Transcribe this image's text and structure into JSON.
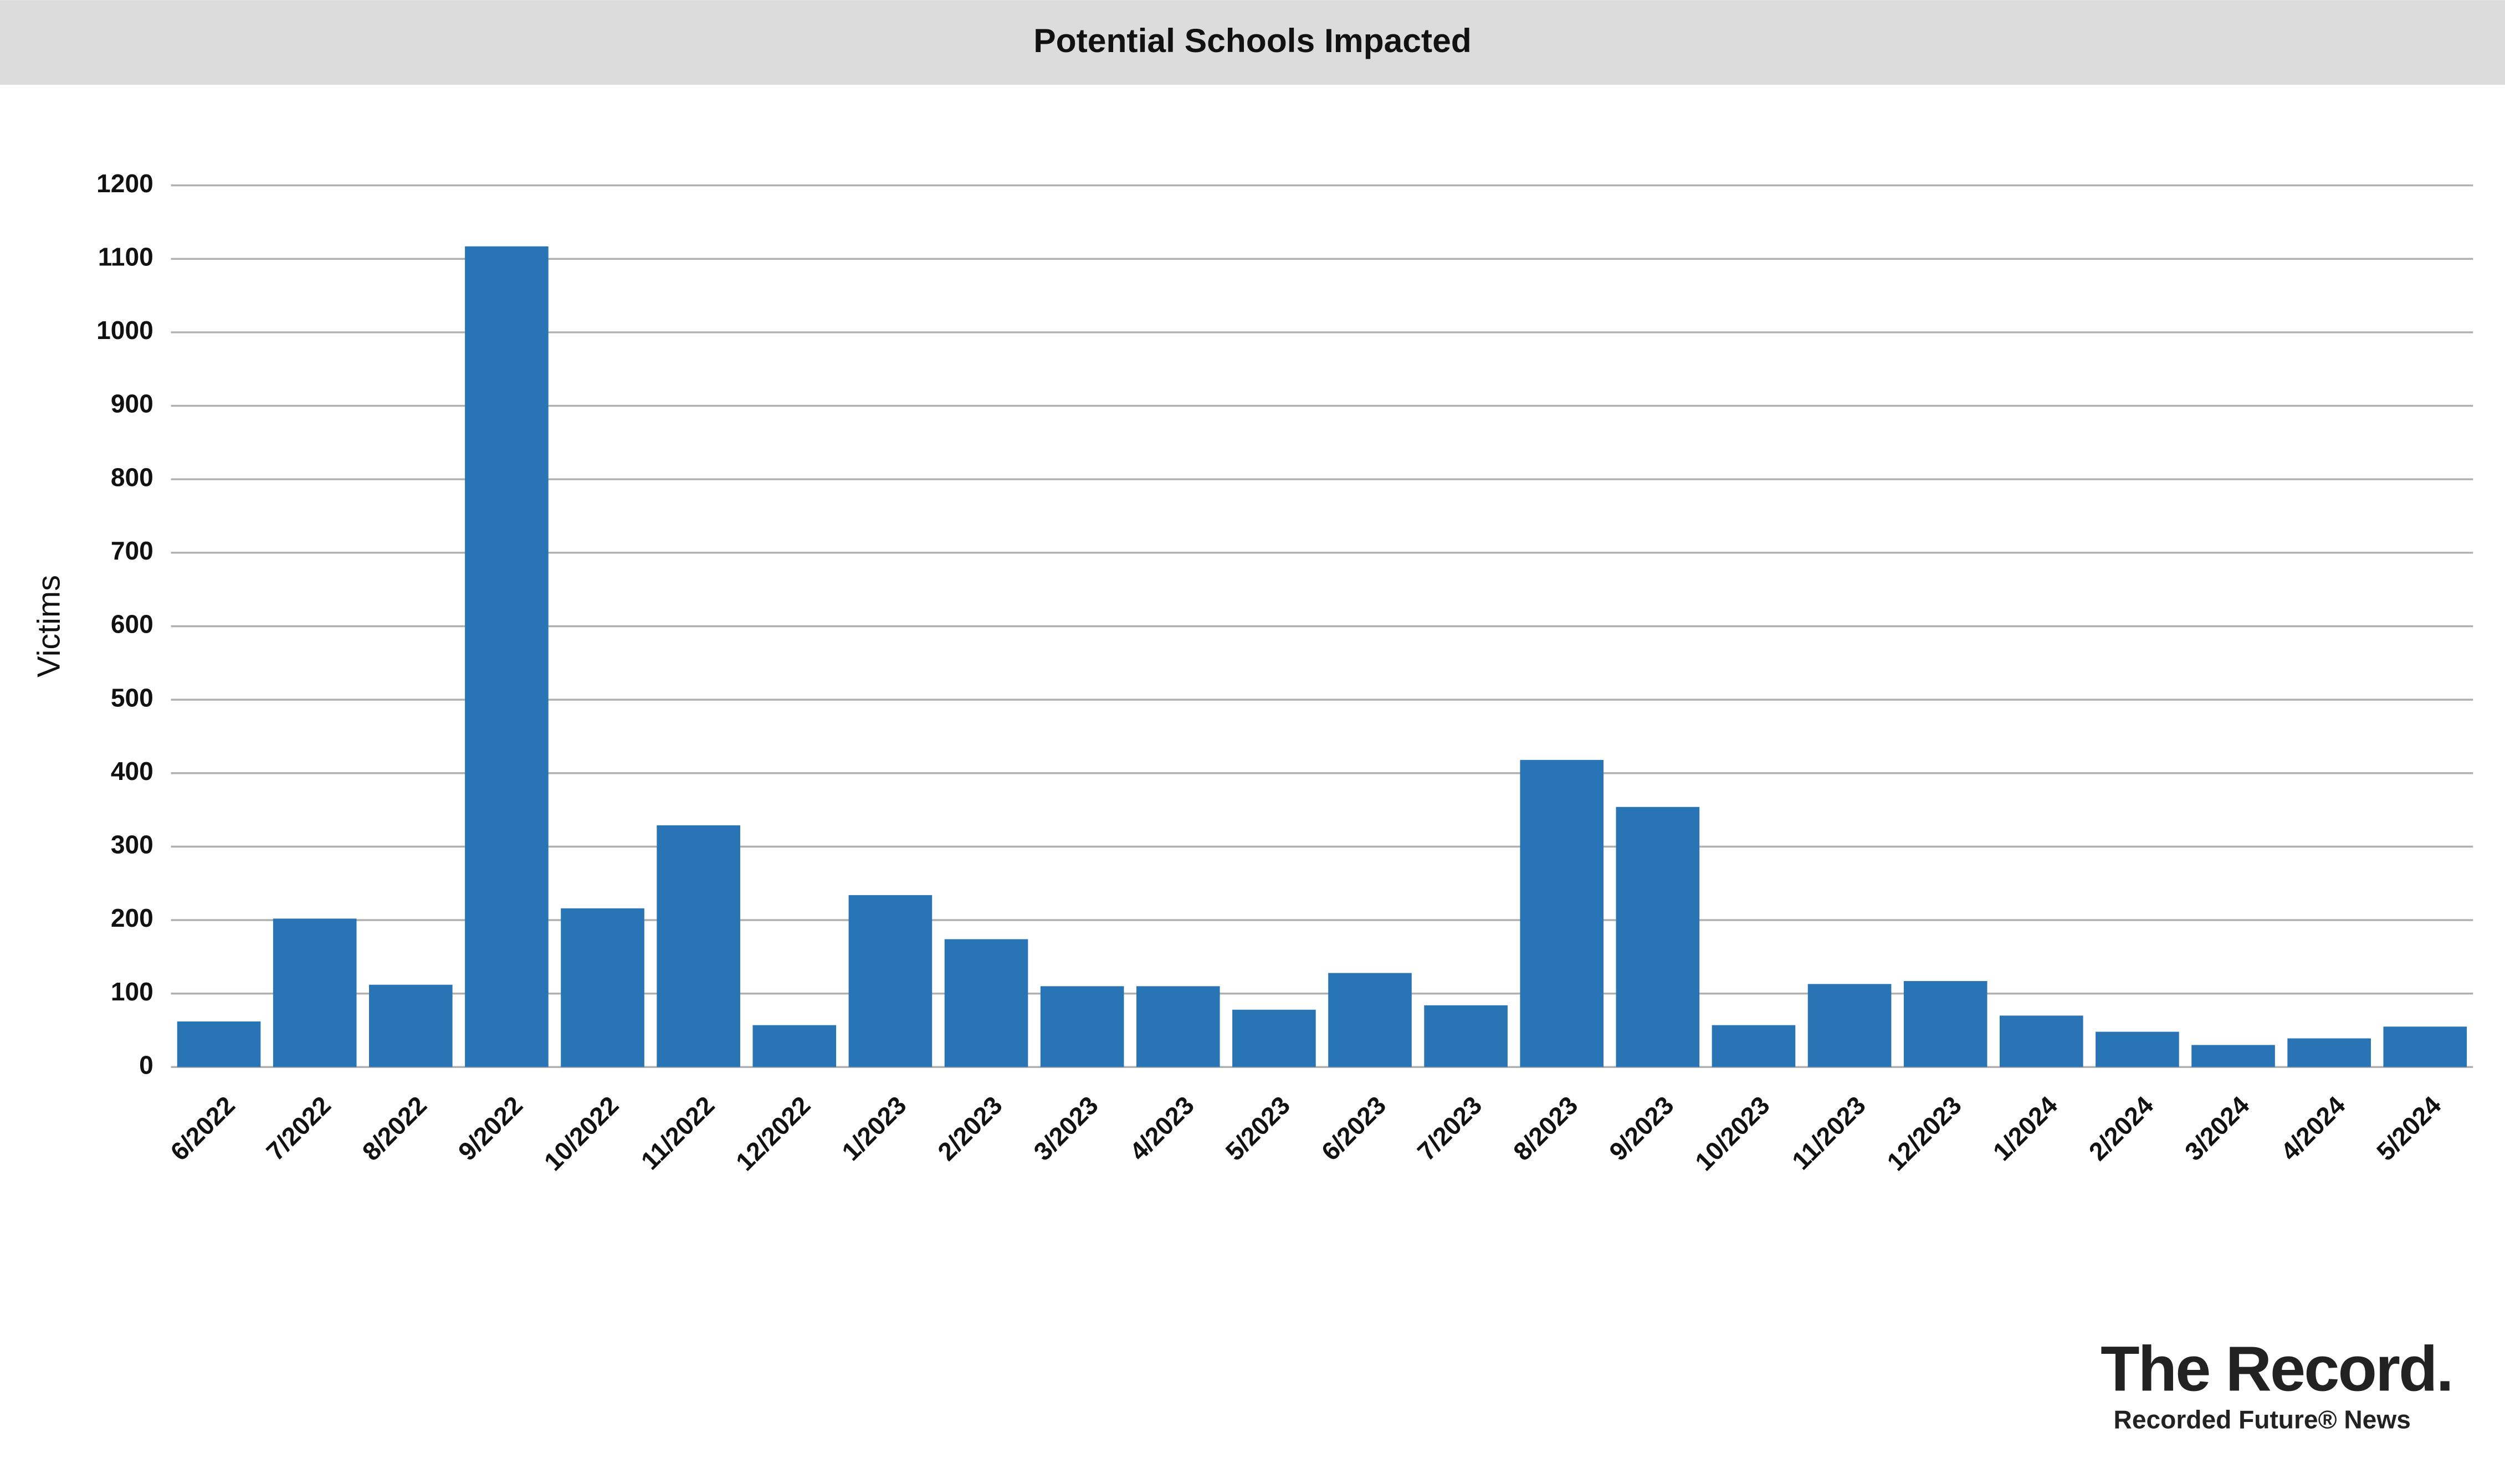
{
  "chart_data": {
    "type": "bar",
    "title": "Potential Schools Impacted",
    "y_label": "Victims",
    "categories": [
      "6/2022",
      "7/2022",
      "8/2022",
      "9/2022",
      "10/2022",
      "11/2022",
      "12/2022",
      "1/2023",
      "2/2023",
      "3/2023",
      "4/2023",
      "5/2023",
      "6/2023",
      "7/2023",
      "8/2023",
      "9/2023",
      "10/2023",
      "11/2023",
      "12/2023",
      "1/2024",
      "2/2024",
      "3/2024",
      "4/2024",
      "5/2024"
    ],
    "values": [
      62,
      202,
      112,
      1117,
      216,
      329,
      57,
      234,
      174,
      110,
      110,
      78,
      128,
      84,
      418,
      354,
      57,
      113,
      117,
      70,
      48,
      30,
      39,
      55
    ],
    "color": "#2874b4",
    "ylim": [
      0,
      1200
    ],
    "yticks": [
      0,
      100,
      200,
      300,
      400,
      500,
      600,
      700,
      800,
      900,
      1000,
      1100,
      1200
    ],
    "grid": true
  },
  "branding": {
    "name": "The Record.",
    "subtitle": "Recorded Future® News"
  }
}
